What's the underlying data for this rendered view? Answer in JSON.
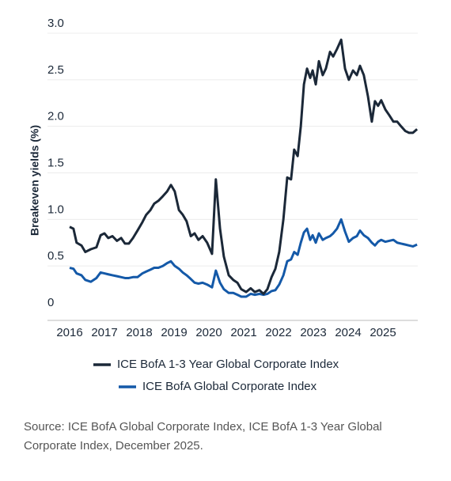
{
  "chart_data": {
    "type": "line",
    "y_label": "Breakeven yields (%)",
    "source": "Source: ICE BofA Global Corporate Index, ICE BofA 1-3 Year Global Corporate Index, December 2025.",
    "x": [
      2016.0,
      2016.11,
      2016.2,
      2016.34,
      2016.45,
      2016.61,
      2016.77,
      2016.89,
      2017.0,
      2017.11,
      2017.23,
      2017.36,
      2017.48,
      2017.59,
      2017.7,
      2017.82,
      2017.95,
      2018.09,
      2018.2,
      2018.32,
      2018.43,
      2018.55,
      2018.68,
      2018.8,
      2018.91,
      2019.02,
      2019.14,
      2019.25,
      2019.36,
      2019.48,
      2019.59,
      2019.7,
      2019.82,
      2019.95,
      2020.09,
      2020.2,
      2020.32,
      2020.43,
      2020.57,
      2020.7,
      2020.82,
      2020.93,
      2021.07,
      2021.2,
      2021.32,
      2021.45,
      2021.57,
      2021.68,
      2021.8,
      2021.91,
      2022.02,
      2022.14,
      2022.25,
      2022.36,
      2022.45,
      2022.55,
      2022.64,
      2022.73,
      2022.82,
      2022.91,
      2022.98,
      2023.07,
      2023.16,
      2023.27,
      2023.36,
      2023.48,
      2023.57,
      2023.68,
      2023.8,
      2023.91,
      2024.02,
      2024.14,
      2024.25,
      2024.34,
      2024.45,
      2024.57,
      2024.68,
      2024.77,
      2024.86,
      2024.95,
      2025.07,
      2025.18,
      2025.3,
      2025.41,
      2025.52,
      2025.64,
      2025.75,
      2025.86,
      2025.98
    ],
    "series": [
      {
        "name": "ICE BofA 1-3 Year Global Corporate Index",
        "color": "#1b2838",
        "values": [
          0.92,
          0.9,
          0.75,
          0.72,
          0.65,
          0.68,
          0.7,
          0.83,
          0.85,
          0.8,
          0.82,
          0.77,
          0.8,
          0.74,
          0.74,
          0.8,
          0.88,
          0.97,
          1.05,
          1.1,
          1.17,
          1.2,
          1.25,
          1.3,
          1.37,
          1.3,
          1.1,
          1.05,
          0.98,
          0.82,
          0.85,
          0.78,
          0.82,
          0.75,
          0.63,
          1.43,
          0.9,
          0.6,
          0.4,
          0.35,
          0.32,
          0.25,
          0.22,
          0.26,
          0.22,
          0.24,
          0.2,
          0.25,
          0.38,
          0.47,
          0.65,
          1.0,
          1.45,
          1.43,
          1.75,
          1.68,
          2.0,
          2.45,
          2.62,
          2.52,
          2.6,
          2.45,
          2.7,
          2.55,
          2.62,
          2.8,
          2.75,
          2.83,
          2.93,
          2.62,
          2.5,
          2.6,
          2.55,
          2.65,
          2.55,
          2.32,
          2.05,
          2.27,
          2.22,
          2.28,
          2.18,
          2.12,
          2.05,
          2.05,
          2.0,
          1.95,
          1.93,
          1.93,
          1.97
        ]
      },
      {
        "name": "ICE BofA Global Corporate Index",
        "color": "#1459a8",
        "values": [
          0.48,
          0.47,
          0.42,
          0.4,
          0.35,
          0.33,
          0.37,
          0.43,
          0.42,
          0.41,
          0.4,
          0.39,
          0.38,
          0.37,
          0.37,
          0.38,
          0.38,
          0.42,
          0.44,
          0.46,
          0.48,
          0.48,
          0.5,
          0.53,
          0.55,
          0.5,
          0.47,
          0.43,
          0.4,
          0.36,
          0.32,
          0.31,
          0.32,
          0.3,
          0.27,
          0.45,
          0.32,
          0.25,
          0.21,
          0.21,
          0.19,
          0.17,
          0.17,
          0.2,
          0.19,
          0.2,
          0.19,
          0.2,
          0.23,
          0.24,
          0.3,
          0.4,
          0.55,
          0.57,
          0.65,
          0.62,
          0.75,
          0.86,
          0.9,
          0.78,
          0.83,
          0.75,
          0.85,
          0.78,
          0.8,
          0.82,
          0.85,
          0.9,
          1.0,
          0.87,
          0.76,
          0.8,
          0.82,
          0.88,
          0.83,
          0.8,
          0.75,
          0.72,
          0.76,
          0.78,
          0.76,
          0.77,
          0.78,
          0.75,
          0.74,
          0.73,
          0.72,
          0.71,
          0.73
        ]
      }
    ],
    "xlim": [
      2016,
      2026
    ],
    "xticks": [
      2016,
      2017,
      2018,
      2019,
      2020,
      2021,
      2022,
      2023,
      2024,
      2025
    ],
    "ylim": [
      0,
      3
    ],
    "yticks": [
      0,
      0.5,
      {
        "value": 1,
        "label": "1.0"
      },
      1.5,
      {
        "value": 2,
        "label": "2.0"
      },
      2.5,
      {
        "value": 3,
        "label": "3.0"
      }
    ],
    "grid": true
  }
}
